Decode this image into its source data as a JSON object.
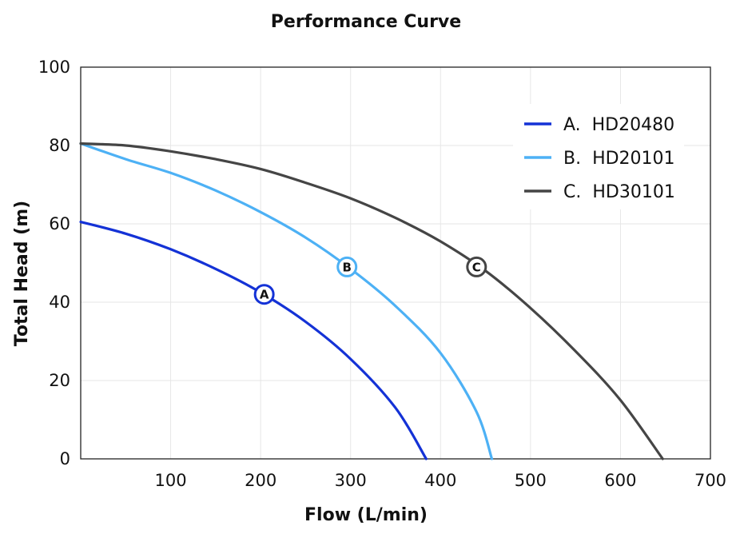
{
  "chart_data": {
    "type": "line",
    "title": "Performance Curve",
    "xlabel": "Flow (L/min)",
    "ylabel": "Total Head (m)",
    "xlim": [
      0,
      700
    ],
    "ylim": [
      0,
      100
    ],
    "xticks": [
      100,
      200,
      300,
      400,
      500,
      600,
      700
    ],
    "yticks": [
      0,
      20,
      40,
      60,
      80,
      100
    ],
    "grid": true,
    "legend_position": "top-right",
    "series": [
      {
        "name": "A.  HD20480",
        "marker_label": "A",
        "color": "#1432d6",
        "points": [
          [
            0,
            60.5
          ],
          [
            50,
            57.5
          ],
          [
            100,
            53.5
          ],
          [
            150,
            48.5
          ],
          [
            200,
            42.5
          ],
          [
            250,
            35
          ],
          [
            300,
            25.5
          ],
          [
            350,
            13
          ],
          [
            384,
            0
          ]
        ],
        "marker_at": [
          204,
          42
        ]
      },
      {
        "name": "B.  HD20101",
        "marker_label": "B",
        "color": "#4db1f5",
        "points": [
          [
            0,
            80.5
          ],
          [
            50,
            76.5
          ],
          [
            100,
            73
          ],
          [
            150,
            68.5
          ],
          [
            200,
            63
          ],
          [
            250,
            56.5
          ],
          [
            300,
            48.5
          ],
          [
            350,
            39
          ],
          [
            400,
            27
          ],
          [
            440,
            12
          ],
          [
            457,
            0
          ]
        ],
        "marker_at": [
          296,
          49
        ]
      },
      {
        "name": "C.  HD30101",
        "marker_label": "C",
        "color": "#454545",
        "points": [
          [
            0,
            80.5
          ],
          [
            50,
            80
          ],
          [
            100,
            78.5
          ],
          [
            150,
            76.5
          ],
          [
            200,
            74
          ],
          [
            250,
            70.5
          ],
          [
            300,
            66.5
          ],
          [
            350,
            61.5
          ],
          [
            400,
            55.5
          ],
          [
            450,
            48
          ],
          [
            500,
            38.5
          ],
          [
            550,
            27.5
          ],
          [
            600,
            15
          ],
          [
            647,
            0
          ]
        ],
        "marker_at": [
          440,
          49
        ]
      }
    ]
  }
}
